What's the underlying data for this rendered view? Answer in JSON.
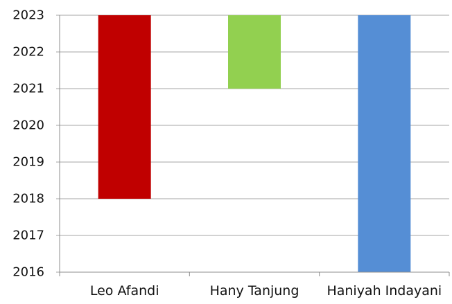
{
  "chart_data": {
    "type": "bar",
    "categories": [
      "Leo Afandi",
      "Hany Tanjung",
      "Haniyah Indayani"
    ],
    "series": [
      {
        "ranges": [
          [
            2018,
            2023
          ],
          [
            2021,
            2023
          ],
          [
            2016,
            2023
          ]
        ],
        "colors": [
          "#c00000",
          "#92d050",
          "#558ed5"
        ]
      }
    ],
    "ylim": [
      2016,
      2023
    ],
    "yticks": [
      "2016",
      "2017",
      "2018",
      "2019",
      "2020",
      "2021",
      "2022",
      "2023"
    ],
    "grid": true,
    "legend": "none",
    "title": "",
    "xlabel": "",
    "ylabel": ""
  }
}
